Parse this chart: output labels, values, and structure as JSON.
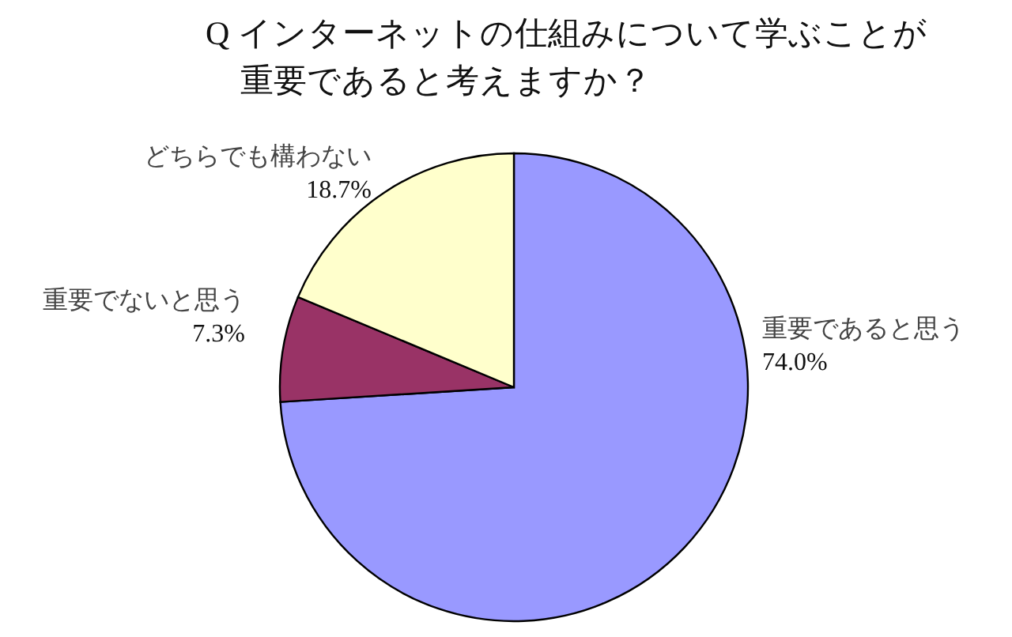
{
  "chart_data": {
    "type": "pie",
    "title": "Q インターネットの仕組みについて学ぶことが重要であると考えますか？",
    "categories": [
      "重要であると思う",
      "重要でないと思う",
      "どちらでも構わない"
    ],
    "values": [
      74.0,
      7.3,
      18.7
    ],
    "colors": [
      "#9999ff",
      "#993366",
      "#ffffcc"
    ],
    "value_labels": [
      "74.0%",
      "7.3%",
      "18.7%"
    ]
  }
}
